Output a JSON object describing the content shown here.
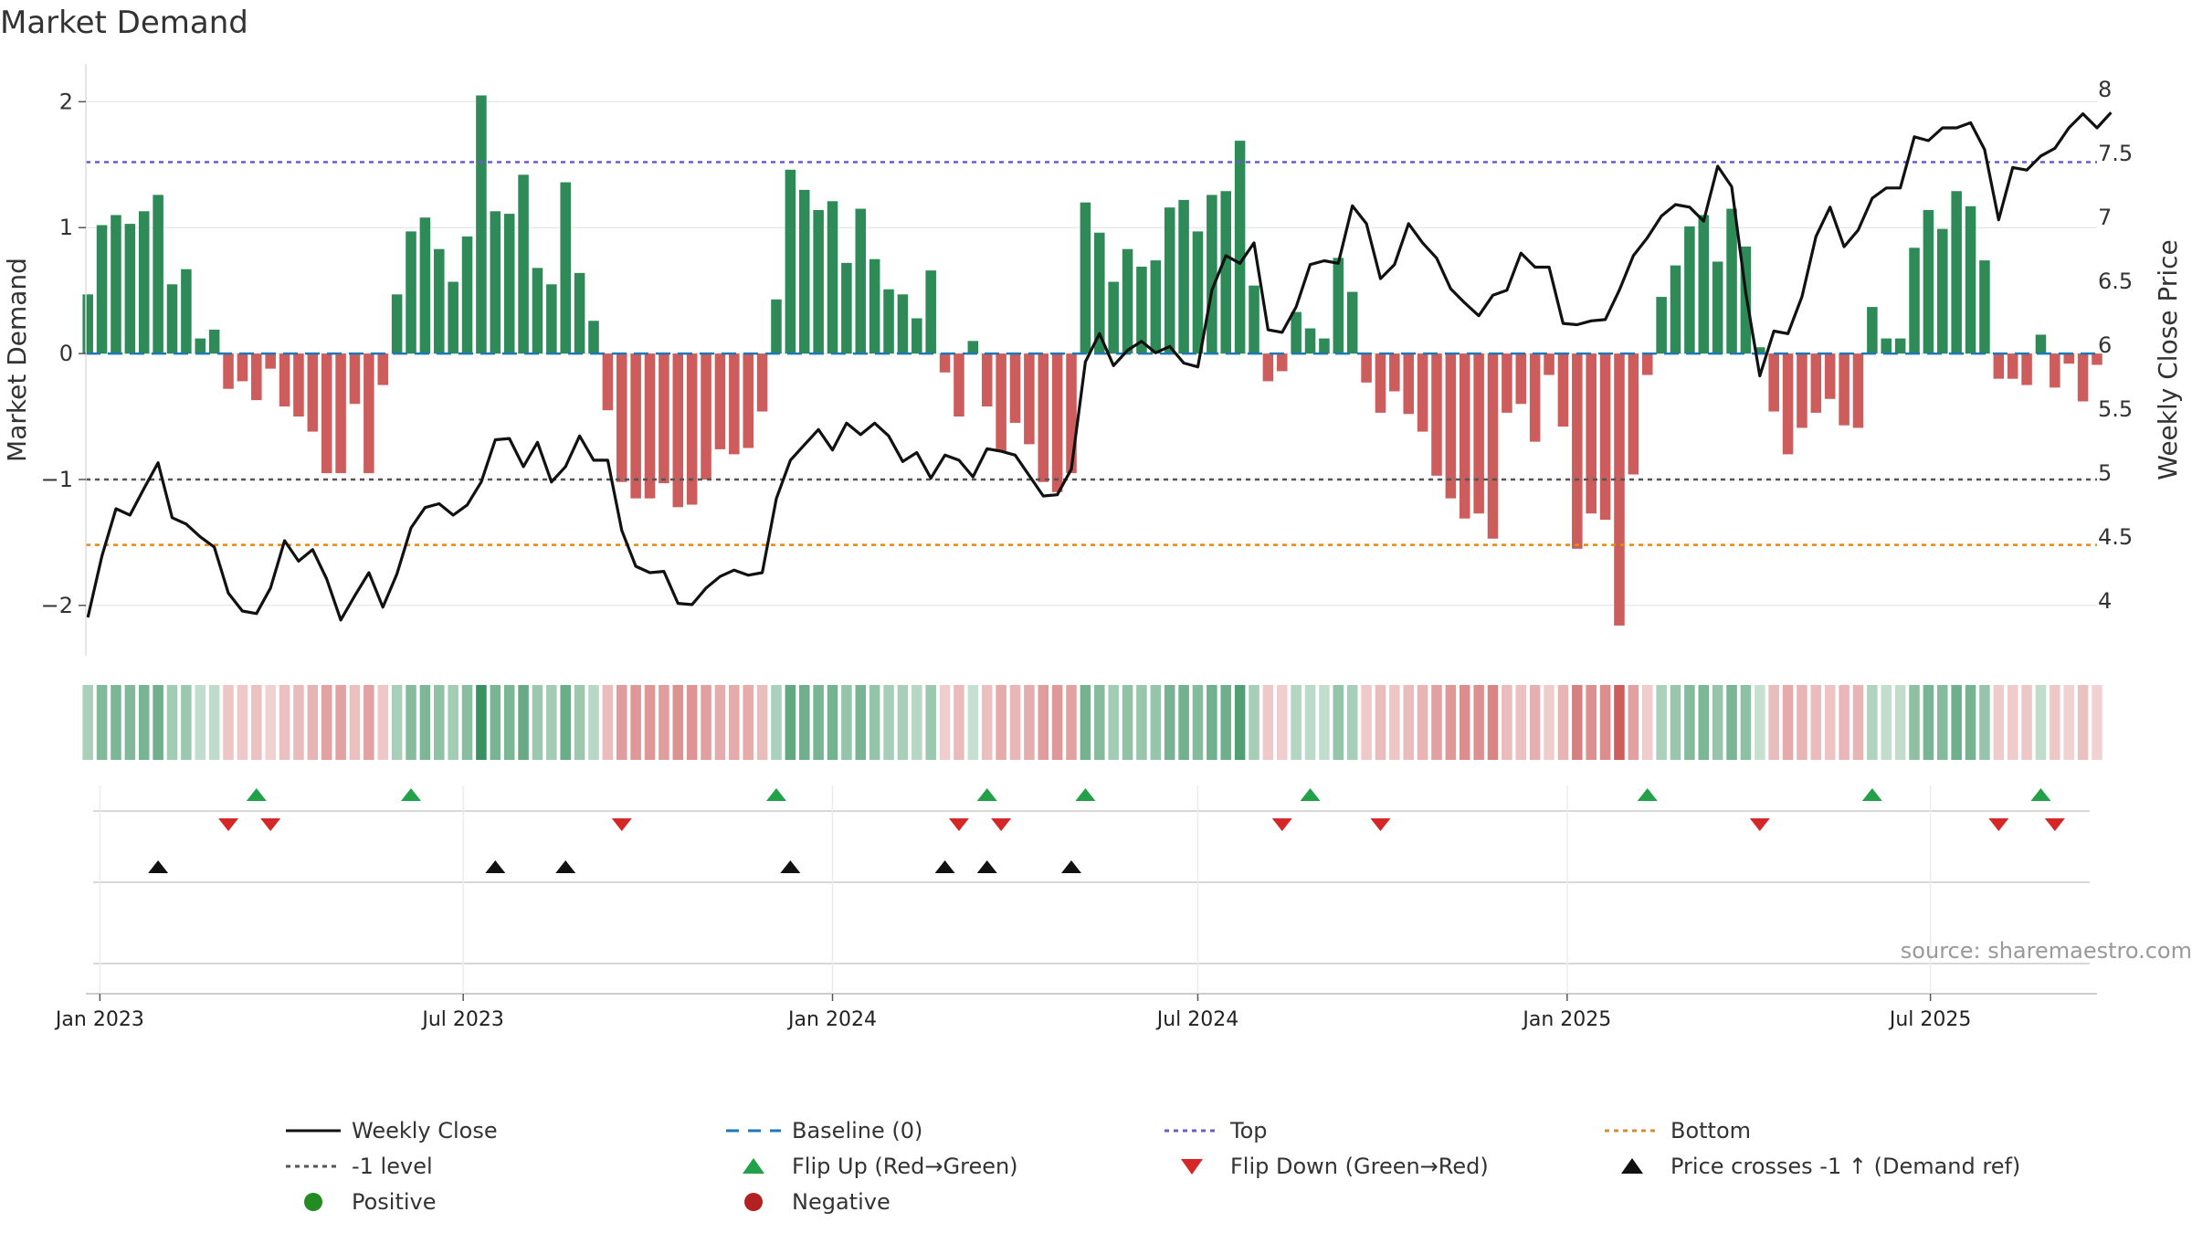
{
  "chart_data": {
    "type": "bar+line",
    "title": "Market Demand",
    "ylabel": "Market Demand",
    "y2label": "Weekly Close Price",
    "ylim": [
      -2.4,
      2.3
    ],
    "y2lim": [
      3.57,
      8.2
    ],
    "yticks": [
      "2",
      "1",
      "0",
      "−1",
      "−2"
    ],
    "yticks_values": [
      2,
      1,
      0,
      -1,
      -2
    ],
    "y2ticks": [
      "8",
      "7.5",
      "7",
      "6.5",
      "6",
      "5.5",
      "5",
      "4.5",
      "4"
    ],
    "y2ticks_values": [
      8,
      7.5,
      7,
      6.5,
      6,
      5.5,
      5,
      4.5,
      4
    ],
    "x_range": [
      "2022-12-25",
      "2025-09-22"
    ],
    "x_ticks": [
      {
        "label": "Jan 2023",
        "date": "2023-01-01"
      },
      {
        "label": "Jul 2023",
        "date": "2023-07-01"
      },
      {
        "label": "Jan 2024",
        "date": "2024-01-01"
      },
      {
        "label": "Jul 2024",
        "date": "2024-07-01"
      },
      {
        "label": "Jan 2025",
        "date": "2025-01-01"
      },
      {
        "label": "Jul 2025",
        "date": "2025-07-01"
      }
    ],
    "start_date": "2022-12-26",
    "interval_days": 7,
    "demand": [
      0.47,
      1.02,
      1.1,
      1.03,
      1.13,
      1.26,
      0.55,
      0.67,
      0.12,
      0.19,
      -0.28,
      -0.22,
      -0.37,
      -0.12,
      -0.42,
      -0.5,
      -0.62,
      -0.95,
      -0.95,
      -0.4,
      -0.95,
      -0.25,
      0.47,
      0.97,
      1.08,
      0.83,
      0.57,
      0.93,
      2.05,
      1.13,
      1.11,
      1.42,
      0.68,
      0.55,
      1.36,
      0.64,
      0.26,
      -0.45,
      -1.02,
      -1.15,
      -1.15,
      -1.03,
      -1.22,
      -1.2,
      -1.0,
      -0.76,
      -0.8,
      -0.75,
      -0.46,
      0.43,
      1.46,
      1.3,
      1.14,
      1.21,
      0.72,
      1.15,
      0.75,
      0.51,
      0.47,
      0.28,
      0.66,
      -0.15,
      -0.5,
      0.1,
      -0.42,
      -0.78,
      -0.55,
      -0.72,
      -1.02,
      -1.1,
      -0.95,
      1.2,
      0.96,
      0.57,
      0.83,
      0.69,
      0.74,
      1.16,
      1.22,
      0.97,
      1.26,
      1.29,
      1.69,
      0.54,
      -0.22,
      -0.14,
      0.33,
      0.2,
      0.12,
      0.76,
      0.49,
      -0.23,
      -0.47,
      -0.3,
      -0.48,
      -0.62,
      -0.97,
      -1.15,
      -1.31,
      -1.27,
      -1.47,
      -0.47,
      -0.4,
      -0.7,
      -0.17,
      -0.58,
      -1.55,
      -1.27,
      -1.32,
      -2.16,
      -0.96,
      -0.17,
      0.45,
      0.7,
      1.01,
      1.1,
      0.73,
      1.15,
      0.85,
      0.05,
      -0.46,
      -0.8,
      -0.59,
      -0.47,
      -0.36,
      -0.57,
      -0.59,
      0.37,
      0.12,
      0.12,
      0.84,
      1.14,
      0.99,
      1.29,
      1.17,
      0.74,
      -0.2,
      -0.2,
      -0.25,
      0.15,
      -0.27,
      -0.08,
      -0.38,
      -0.09
    ],
    "close": [
      3.87,
      4.35,
      4.72,
      4.67,
      4.88,
      5.08,
      4.65,
      4.6,
      4.5,
      4.42,
      4.06,
      3.92,
      3.9,
      4.1,
      4.47,
      4.31,
      4.4,
      4.17,
      3.85,
      4.04,
      4.22,
      3.95,
      4.21,
      4.57,
      4.73,
      4.76,
      4.67,
      4.75,
      4.93,
      5.26,
      5.27,
      5.05,
      5.24,
      4.93,
      5.05,
      5.29,
      5.1,
      5.1,
      4.55,
      4.27,
      4.22,
      4.23,
      3.98,
      3.97,
      4.1,
      4.19,
      4.24,
      4.2,
      4.22,
      4.8,
      5.1,
      5.22,
      5.34,
      5.18,
      5.39,
      5.3,
      5.39,
      5.29,
      5.09,
      5.16,
      4.96,
      5.14,
      5.1,
      4.97,
      5.19,
      5.17,
      5.14,
      4.98,
      4.82,
      4.83,
      5.03,
      5.87,
      6.09,
      5.84,
      5.96,
      6.03,
      5.94,
      5.99,
      5.86,
      5.83,
      6.43,
      6.7,
      6.64,
      6.8,
      6.12,
      6.1,
      6.3,
      6.63,
      6.66,
      6.64,
      7.09,
      6.95,
      6.52,
      6.63,
      6.95,
      6.8,
      6.68,
      6.44,
      6.33,
      6.23,
      6.39,
      6.43,
      6.72,
      6.61,
      6.61,
      6.17,
      6.16,
      6.19,
      6.2,
      6.43,
      6.7,
      6.84,
      7.01,
      7.1,
      7.08,
      6.97,
      7.4,
      7.24,
      6.41,
      5.76,
      6.11,
      6.09,
      6.38,
      6.85,
      7.08,
      6.77,
      6.9,
      7.15,
      7.23,
      7.23,
      7.63,
      7.6,
      7.7,
      7.7,
      7.74,
      7.53,
      6.98,
      7.39,
      7.37,
      7.48,
      7.54,
      7.7,
      7.81,
      7.7,
      7.82
    ],
    "threshold_top": 1.52,
    "threshold_bottom": -1.52,
    "threshold_neg1": -1.0,
    "baseline": 0,
    "flip_up_idx": [
      12,
      23,
      49,
      64,
      71,
      87,
      111,
      127,
      139
    ],
    "flip_down_idx": [
      10,
      13,
      38,
      62,
      65,
      85,
      92,
      119,
      136,
      140
    ],
    "price_cross_idx": [
      5,
      29,
      34,
      50,
      61,
      64,
      70
    ],
    "colors": {
      "positive": "#2e8b57",
      "negative": "#cd5c5c",
      "close": "#111111",
      "baseline": "#1f77b4",
      "top": "#6a5acd",
      "bottom": "#e08a1e",
      "neg1": "#555555",
      "flip_up": "#22a04a",
      "flip_down": "#d62728",
      "price_cross": "#111111",
      "legend_positive": "#228b22",
      "legend_negative": "#b22222"
    },
    "legend": [
      {
        "label": "Weekly Close",
        "kind": "line-solid",
        "color": "#111111"
      },
      {
        "label": "Baseline (0)",
        "kind": "line-dash",
        "color": "#1f77b4"
      },
      {
        "label": "Top",
        "kind": "line-dot",
        "color": "#6a5acd"
      },
      {
        "label": "Bottom",
        "kind": "line-dot",
        "color": "#e08a1e"
      },
      {
        "label": "-1 level",
        "kind": "line-dot",
        "color": "#555555"
      },
      {
        "label": "Flip Up (Red→Green)",
        "kind": "tri-up",
        "color": "#22a04a"
      },
      {
        "label": "Flip Down (Green→Red)",
        "kind": "tri-down",
        "color": "#d62728"
      },
      {
        "label": "Price crosses -1 ↑ (Demand ref)",
        "kind": "tri-up",
        "color": "#111111"
      },
      {
        "label": "Positive",
        "kind": "dot",
        "color": "#228b22"
      },
      {
        "label": "Negative",
        "kind": "dot",
        "color": "#b22222"
      }
    ],
    "source": "source: sharemaestro.com"
  }
}
